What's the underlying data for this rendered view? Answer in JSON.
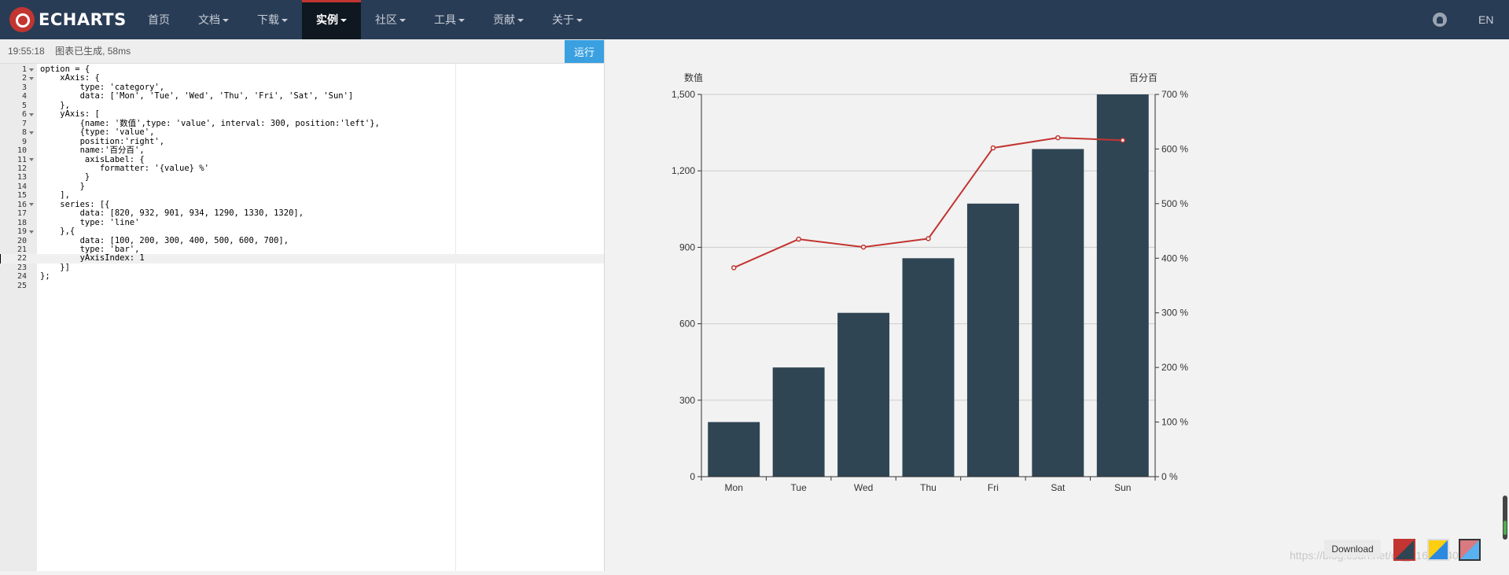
{
  "brand": {
    "logo_text": "ECHARTS"
  },
  "nav": {
    "items": [
      {
        "label": "首页",
        "caret": false,
        "active": false
      },
      {
        "label": "文档",
        "caret": true,
        "active": false
      },
      {
        "label": "下载",
        "caret": true,
        "active": false
      },
      {
        "label": "实例",
        "caret": true,
        "active": true
      },
      {
        "label": "社区",
        "caret": true,
        "active": false
      },
      {
        "label": "工具",
        "caret": true,
        "active": false
      },
      {
        "label": "贡献",
        "caret": true,
        "active": false
      },
      {
        "label": "关于",
        "caret": true,
        "active": false
      }
    ],
    "language": "EN"
  },
  "status": {
    "time": "19:55:18",
    "message": "图表已生成, 58ms",
    "run_label": "运行"
  },
  "editor": {
    "active_line": 22,
    "lines": [
      {
        "n": "1",
        "fold": true,
        "text": "option = {"
      },
      {
        "n": "2",
        "fold": true,
        "text": "    xAxis: {"
      },
      {
        "n": "3",
        "fold": false,
        "text": "        type: 'category',"
      },
      {
        "n": "4",
        "fold": false,
        "text": "        data: ['Mon', 'Tue', 'Wed', 'Thu', 'Fri', 'Sat', 'Sun']"
      },
      {
        "n": "5",
        "fold": false,
        "text": "    },"
      },
      {
        "n": "6",
        "fold": true,
        "text": "    yAxis: ["
      },
      {
        "n": "7",
        "fold": false,
        "text": "        {name: '数值',type: 'value', interval: 300, position:'left'},"
      },
      {
        "n": "8",
        "fold": true,
        "text": "        {type: 'value',"
      },
      {
        "n": "9",
        "fold": false,
        "text": "        position:'right',"
      },
      {
        "n": "10",
        "fold": false,
        "text": "        name:'百分百',"
      },
      {
        "n": "11",
        "fold": true,
        "text": "         axisLabel: {"
      },
      {
        "n": "12",
        "fold": false,
        "text": "            formatter: '{value} %'"
      },
      {
        "n": "13",
        "fold": false,
        "text": "         }"
      },
      {
        "n": "14",
        "fold": false,
        "text": "        }"
      },
      {
        "n": "15",
        "fold": false,
        "text": "    ],"
      },
      {
        "n": "16",
        "fold": true,
        "text": "    series: [{"
      },
      {
        "n": "17",
        "fold": false,
        "text": "        data: [820, 932, 901, 934, 1290, 1330, 1320],"
      },
      {
        "n": "18",
        "fold": false,
        "text": "        type: 'line'"
      },
      {
        "n": "19",
        "fold": true,
        "text": "    },{"
      },
      {
        "n": "20",
        "fold": false,
        "text": "        data: [100, 200, 300, 400, 500, 600, 700],"
      },
      {
        "n": "21",
        "fold": false,
        "text": "        type: 'bar',"
      },
      {
        "n": "22",
        "fold": false,
        "text": "        yAxisIndex: 1"
      },
      {
        "n": "23",
        "fold": false,
        "text": "    }]"
      },
      {
        "n": "24",
        "fold": false,
        "text": "};"
      },
      {
        "n": "25",
        "fold": false,
        "text": ""
      }
    ]
  },
  "chart_data": {
    "type": "bar",
    "categories": [
      "Mon",
      "Tue",
      "Wed",
      "Thu",
      "Fri",
      "Sat",
      "Sun"
    ],
    "series": [
      {
        "type": "bar",
        "values": [
          100,
          200,
          300,
          400,
          500,
          600,
          700
        ],
        "axis": "right",
        "color": "#2f4554"
      },
      {
        "type": "line",
        "values": [
          820,
          932,
          901,
          934,
          1290,
          1330,
          1320
        ],
        "axis": "left",
        "color": "#c23531"
      }
    ],
    "yaxis_left": {
      "name": "数值",
      "min": 0,
      "max": 1500,
      "ticks": [
        0,
        300,
        600,
        900,
        1200,
        1500
      ],
      "tick_labels": [
        "0",
        "300",
        "600",
        "900",
        "1,200",
        "1,500"
      ]
    },
    "yaxis_right": {
      "name": "百分百",
      "min": 0,
      "max": 700,
      "ticks": [
        0,
        100,
        200,
        300,
        400,
        500,
        600,
        700
      ],
      "tick_labels": [
        "0 %",
        "100 %",
        "200 %",
        "300 %",
        "400 %",
        "500 %",
        "600 %",
        "700 %"
      ]
    },
    "grid": true,
    "legend": "none"
  },
  "toolbar": {
    "download_label": "Download",
    "themes": [
      "default-theme",
      "light-theme",
      "dark-theme"
    ]
  },
  "watermark": "https://blog.csdn.net/qq_41631540"
}
